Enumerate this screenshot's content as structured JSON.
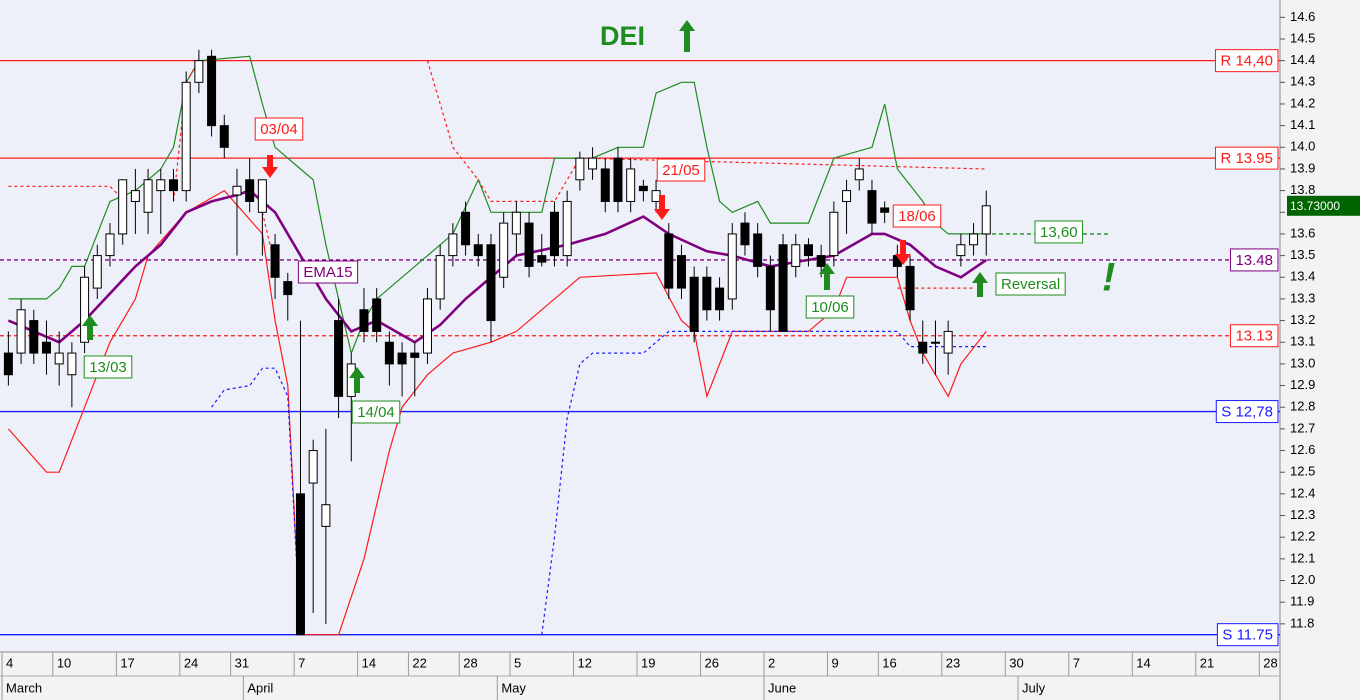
{
  "chart_data": {
    "type": "candlestick",
    "title": "DEI",
    "title_signal": "up",
    "xlim": [
      -0.16,
      100.63
    ],
    "xticks": [
      {
        "value": 0,
        "label": "4"
      },
      {
        "value": 4,
        "label": "10"
      },
      {
        "value": 9,
        "label": "17"
      },
      {
        "value": 14,
        "label": "24"
      },
      {
        "value": 18,
        "label": "31"
      },
      {
        "value": 23,
        "label": "7"
      },
      {
        "value": 28,
        "label": "14"
      },
      {
        "value": 32,
        "label": "22"
      },
      {
        "value": 36,
        "label": "28"
      },
      {
        "value": 40,
        "label": "5"
      },
      {
        "value": 45,
        "label": "12"
      },
      {
        "value": 50,
        "label": "19"
      },
      {
        "value": 55,
        "label": "26"
      },
      {
        "value": 60,
        "label": "2"
      },
      {
        "value": 65,
        "label": "9"
      },
      {
        "value": 69,
        "label": "16"
      },
      {
        "value": 74,
        "label": "23"
      },
      {
        "value": 79,
        "label": "30"
      },
      {
        "value": 84,
        "label": "7"
      },
      {
        "value": 89,
        "label": "14"
      },
      {
        "value": 94,
        "label": "21"
      },
      {
        "value": 99,
        "label": "28"
      }
    ],
    "month_ticks": [
      {
        "value": 0,
        "label": "March"
      },
      {
        "value": 19,
        "label": "April"
      },
      {
        "value": 39,
        "label": "May"
      },
      {
        "value": 60,
        "label": "June"
      },
      {
        "value": 80,
        "label": "July"
      }
    ],
    "ylim": [
      11.67,
      14.68
    ],
    "yticks": [
      11.8,
      11.9,
      {
        "value": 12,
        "label": "12.0"
      },
      12.1,
      12.2,
      12.3,
      12.4,
      12.5,
      12.6,
      12.7,
      12.8,
      12.9,
      {
        "value": 13,
        "label": "13.0"
      },
      13.1,
      13.2,
      13.3,
      13.4,
      13.5,
      13.6,
      13.7,
      13.8,
      13.9,
      {
        "value": 14,
        "label": "14.0"
      },
      14.1,
      14.2,
      14.3,
      14.4,
      14.5,
      14.6
    ],
    "grid": false,
    "up_color": "#ffffff",
    "down_color": "#000000",
    "open": [
      13.05,
      13.05,
      13.2,
      13.1,
      13.0,
      12.95,
      13.1,
      13.35,
      13.5,
      13.6,
      13.75,
      13.7,
      13.8,
      13.85,
      13.8,
      14.3,
      14.42,
      14.1,
      13.78,
      13.85,
      13.7,
      13.55,
      13.38,
      12.4,
      12.45,
      12.25,
      13.2,
      12.85,
      13.25,
      13.3,
      13.1,
      13.05,
      13.05,
      13.05,
      13.3,
      13.5,
      13.7,
      13.55,
      13.55,
      13.4,
      13.6,
      13.65,
      13.5,
      13.7,
      13.5,
      13.85,
      13.9,
      13.9,
      13.95,
      13.75,
      13.82,
      13.75,
      13.6,
      13.5,
      13.4,
      13.4,
      13.35,
      13.3,
      13.65,
      13.6,
      13.45,
      13.55,
      13.45,
      13.55,
      13.5,
      13.5,
      13.75,
      13.85,
      13.8,
      13.72,
      13.5,
      13.45,
      13.1,
      13.1,
      13.05,
      13.5,
      13.55,
      13.6
    ],
    "high": [
      13.15,
      13.3,
      13.25,
      13.2,
      13.15,
      13.1,
      13.45,
      13.55,
      13.65,
      13.85,
      13.9,
      13.9,
      13.9,
      13.9,
      14.35,
      14.45,
      14.45,
      14.15,
      13.9,
      13.95,
      13.85,
      13.6,
      13.42,
      13.2,
      12.65,
      12.7,
      13.3,
      13.05,
      13.35,
      13.35,
      13.15,
      13.1,
      13.1,
      13.35,
      13.55,
      13.65,
      13.75,
      13.6,
      13.6,
      13.7,
      13.75,
      13.7,
      13.6,
      13.75,
      13.8,
      13.98,
      14.0,
      13.95,
      14.0,
      13.95,
      13.85,
      13.85,
      13.65,
      13.55,
      13.45,
      13.45,
      13.4,
      13.65,
      13.7,
      13.65,
      13.5,
      13.6,
      13.6,
      13.58,
      13.55,
      13.75,
      13.85,
      13.95,
      13.85,
      13.75,
      13.55,
      13.5,
      13.2,
      13.2,
      13.2,
      13.6,
      13.65,
      13.8
    ],
    "low": [
      12.9,
      13.0,
      13.0,
      12.95,
      12.9,
      12.8,
      13.05,
      13.3,
      13.45,
      13.55,
      13.6,
      13.6,
      13.6,
      13.75,
      13.75,
      14.25,
      14.05,
      13.95,
      13.5,
      13.7,
      13.5,
      13.3,
      13.2,
      11.75,
      11.85,
      11.8,
      12.75,
      12.55,
      13.1,
      13.1,
      12.9,
      12.85,
      12.85,
      13.0,
      13.25,
      13.45,
      13.5,
      13.45,
      13.1,
      13.35,
      13.5,
      13.4,
      13.45,
      13.45,
      13.45,
      13.8,
      13.85,
      13.7,
      13.7,
      13.7,
      13.75,
      13.7,
      13.3,
      13.3,
      13.1,
      13.2,
      13.2,
      13.25,
      13.5,
      13.4,
      13.15,
      13.15,
      13.4,
      13.45,
      13.4,
      13.45,
      13.6,
      13.8,
      13.6,
      13.65,
      13.4,
      13.2,
      13.0,
      12.95,
      12.95,
      13.45,
      13.5,
      13.5
    ],
    "close": [
      12.95,
      13.25,
      13.05,
      13.05,
      13.05,
      13.05,
      13.4,
      13.5,
      13.6,
      13.85,
      13.8,
      13.85,
      13.85,
      13.8,
      14.3,
      14.4,
      14.1,
      14.0,
      13.82,
      13.75,
      13.85,
      13.4,
      13.32,
      11.75,
      12.6,
      12.35,
      12.85,
      13.0,
      13.15,
      13.15,
      13.0,
      13.0,
      13.03,
      13.3,
      13.5,
      13.6,
      13.55,
      13.5,
      13.2,
      13.65,
      13.7,
      13.45,
      13.47,
      13.5,
      13.75,
      13.95,
      13.95,
      13.75,
      13.75,
      13.9,
      13.8,
      13.8,
      13.35,
      13.35,
      13.15,
      13.25,
      13.25,
      13.6,
      13.55,
      13.45,
      13.25,
      13.15,
      13.55,
      13.5,
      13.45,
      13.7,
      13.8,
      13.9,
      13.65,
      13.7,
      13.45,
      13.25,
      13.05,
      13.1,
      13.15,
      13.55,
      13.6,
      13.73
    ],
    "lines": [
      {
        "color": "#1e8c1e",
        "dash": false,
        "x": [
          0,
          3,
          4,
          5,
          6,
          8,
          10,
          12,
          13,
          14,
          15,
          19,
          20,
          21,
          23,
          24,
          25,
          27,
          28,
          29,
          33,
          35,
          37,
          38,
          42,
          43,
          46,
          48,
          50,
          51,
          53,
          54,
          55,
          56,
          57,
          59,
          60,
          63,
          65,
          68,
          69,
          70,
          72,
          73,
          74,
          77
        ],
        "values": [
          13.3,
          13.3,
          13.35,
          13.45,
          13.45,
          13.75,
          13.8,
          13.9,
          14.0,
          14.3,
          14.4,
          14.42,
          14.2,
          14.0,
          13.9,
          13.85,
          13.55,
          13.05,
          13.2,
          13.3,
          13.5,
          13.6,
          13.85,
          13.7,
          13.7,
          13.95,
          13.95,
          14.0,
          14.0,
          14.25,
          14.3,
          14.3,
          14.0,
          13.75,
          13.7,
          13.75,
          13.65,
          13.65,
          13.95,
          14.0,
          14.2,
          13.9,
          13.75,
          13.65,
          13.6,
          13.6
        ]
      },
      {
        "color": "#ff1a1a",
        "dash": false,
        "x": [
          0,
          3,
          4,
          6,
          7,
          8,
          10,
          11,
          14,
          17,
          20,
          21,
          22,
          23,
          26,
          28,
          30,
          31,
          33,
          35,
          38,
          40,
          43,
          45,
          51,
          53,
          54,
          55,
          57,
          63,
          65,
          66,
          70,
          71,
          72,
          73,
          74,
          75,
          77
        ],
        "values": [
          12.7,
          12.5,
          12.5,
          12.8,
          12.95,
          13.1,
          13.3,
          13.5,
          13.7,
          13.8,
          13.6,
          13.2,
          12.9,
          11.75,
          11.75,
          12.1,
          12.6,
          12.8,
          12.95,
          13.05,
          13.1,
          13.15,
          13.3,
          13.4,
          13.42,
          13.2,
          13.15,
          12.85,
          13.15,
          13.15,
          13.25,
          13.4,
          13.4,
          13.2,
          13.05,
          12.95,
          12.85,
          13.0,
          13.15
        ]
      },
      {
        "color": "#ff1a1a",
        "dash": true,
        "x": [
          0,
          8,
          9,
          null,
          13,
          14,
          15,
          null,
          20,
          21,
          null,
          33,
          35,
          37,
          38,
          43,
          44,
          45,
          77,
          null,
          70,
          76
        ],
        "values": [
          13.82,
          13.82,
          13.76,
          null,
          13.75,
          14.3,
          14.4,
          null,
          13.7,
          13.45,
          null,
          14.4,
          14.0,
          13.85,
          13.75,
          13.75,
          13.85,
          13.95,
          13.9,
          null,
          13.35,
          13.35
        ]
      },
      {
        "color": "#1a1aff",
        "dash": true,
        "x": [
          16,
          17,
          19,
          20,
          21,
          22,
          23,
          null,
          42,
          43,
          44,
          45,
          46,
          50,
          51,
          52,
          54,
          70,
          71,
          77
        ],
        "values": [
          12.8,
          12.88,
          12.9,
          12.98,
          12.98,
          12.85,
          11.75,
          null,
          11.75,
          12.2,
          12.75,
          13.0,
          13.05,
          13.05,
          13.1,
          13.15,
          13.15,
          13.15,
          13.08,
          13.08
        ]
      },
      {
        "name": "EMA15",
        "color": "#800080",
        "dash": false,
        "x": [
          0,
          4,
          6,
          10,
          12,
          14,
          16,
          18,
          19,
          21,
          23,
          25,
          27,
          29,
          32,
          34,
          36,
          38,
          40,
          44,
          47,
          50,
          52,
          55,
          57,
          60,
          63,
          65,
          68,
          69,
          71,
          73,
          75,
          77
        ],
        "values": [
          13.2,
          13.1,
          13.2,
          13.45,
          13.55,
          13.7,
          13.75,
          13.78,
          13.8,
          13.7,
          13.5,
          13.3,
          13.15,
          13.2,
          13.1,
          13.18,
          13.3,
          13.4,
          13.5,
          13.55,
          13.6,
          13.68,
          13.6,
          13.52,
          13.5,
          13.45,
          13.48,
          13.5,
          13.6,
          13.6,
          13.55,
          13.45,
          13.4,
          13.48
        ]
      }
    ],
    "levels": [
      {
        "value": 14.4,
        "label": "R 14,40",
        "color": "#ff1a1a",
        "dash": false
      },
      {
        "value": 13.95,
        "label": "R 13.95",
        "color": "#ff1a1a",
        "dash": false
      },
      {
        "value": 13.48,
        "label": "13.48",
        "color": "#800080",
        "dash": true
      },
      {
        "value": 13.13,
        "label": "13.13",
        "color": "#ff1a1a",
        "dash": true
      },
      {
        "value": 12.78,
        "label": "S 12,78",
        "color": "#1a1aff",
        "dash": false
      },
      {
        "value": 11.75,
        "label": "S 11.75",
        "color": "#1a1aff",
        "dash": false
      }
    ],
    "last_price": {
      "value": 13.73,
      "label": "13.73000"
    },
    "target": {
      "value": 13.6,
      "label": "13,60"
    },
    "signals": [
      {
        "label": "13/03",
        "direction": "up"
      },
      {
        "label": "03/04",
        "direction": "down"
      },
      {
        "label": "14/04",
        "direction": "up"
      },
      {
        "label": "21/05",
        "direction": "down"
      },
      {
        "label": "10/06",
        "direction": "up"
      },
      {
        "label": "18/06",
        "direction": "down"
      }
    ],
    "reversal": {
      "label": "Reversal",
      "mark": "!",
      "direction": "up"
    }
  }
}
